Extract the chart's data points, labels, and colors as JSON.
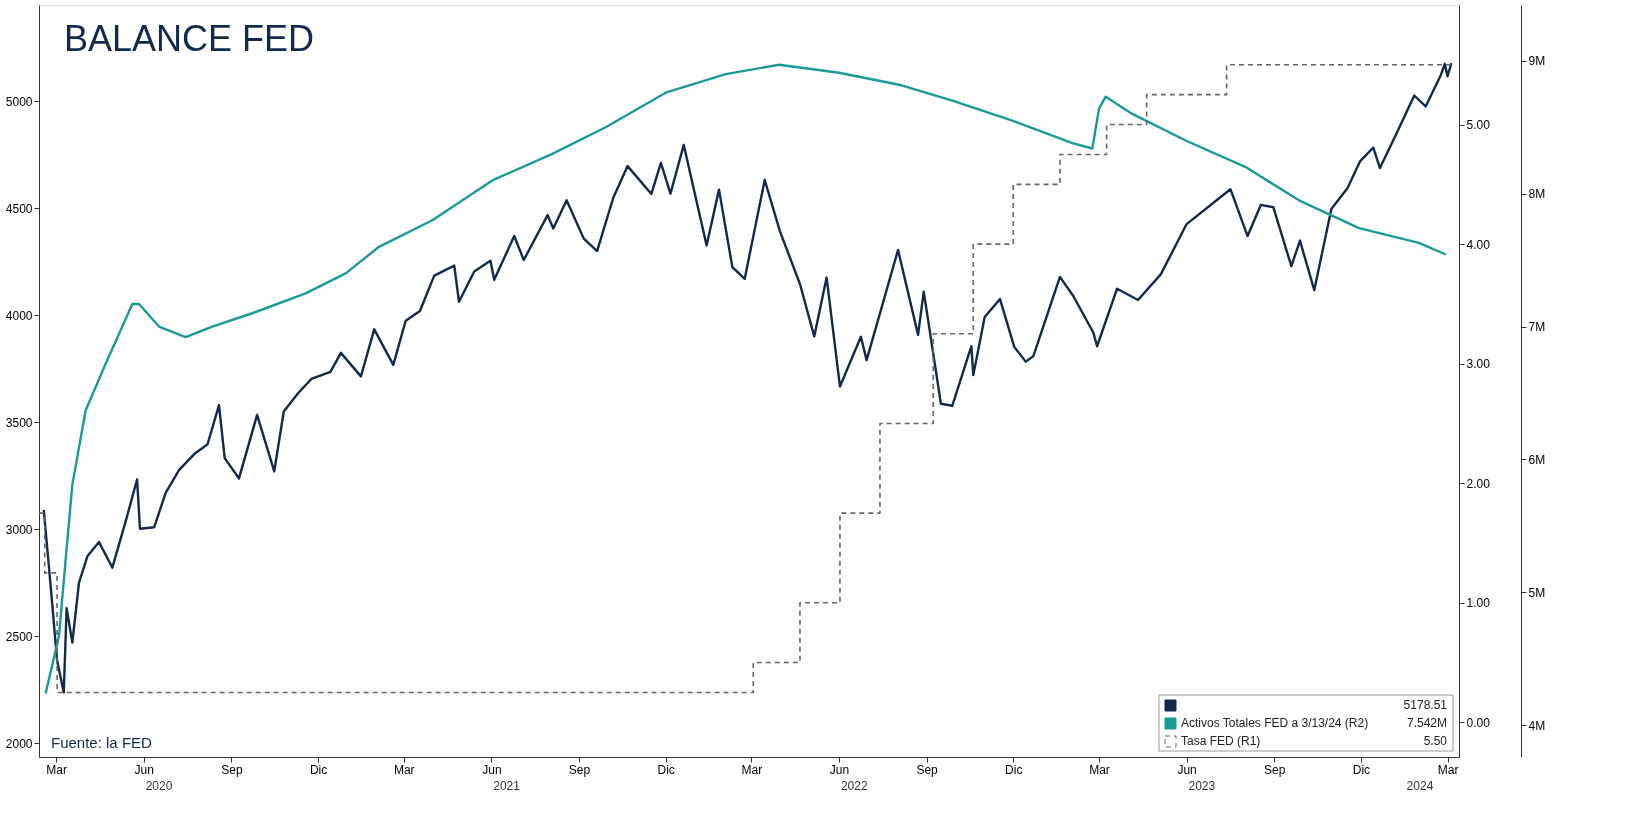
{
  "chart_data": {
    "type": "line",
    "title": "BALANCE FED",
    "xlim": [
      "2020-02-26",
      "2024-03-27"
    ],
    "x2lim": [
      "2020-02-26",
      "2024-03-27"
    ],
    "xticks": [
      {
        "value": "2020-03-15",
        "label": "Mar"
      },
      {
        "value": "2020-06-15",
        "label": "Jun"
      },
      {
        "value": "2020-09-15",
        "label": "Sep"
      },
      {
        "value": "2020-12-15",
        "label": "Dic"
      },
      {
        "value": "2021-03-15",
        "label": "Mar"
      },
      {
        "value": "2021-06-15",
        "label": "Jun"
      },
      {
        "value": "2021-09-15",
        "label": "Sep"
      },
      {
        "value": "2021-12-15",
        "label": "Dic"
      },
      {
        "value": "2022-03-15",
        "label": "Mar"
      },
      {
        "value": "2022-06-15",
        "label": "Jun"
      },
      {
        "value": "2022-09-15",
        "label": "Sep"
      },
      {
        "value": "2022-12-15",
        "label": "Dic"
      },
      {
        "value": "2023-03-15",
        "label": "Mar"
      },
      {
        "value": "2023-06-15",
        "label": "Jun"
      },
      {
        "value": "2023-09-15",
        "label": "Sep"
      },
      {
        "value": "2023-12-15",
        "label": "Dic"
      },
      {
        "value": "2024-03-15",
        "label": "Mar"
      }
    ],
    "x2ticks": [
      {
        "value": "2020-07-01",
        "label": "2020"
      },
      {
        "value": "2021-07-01",
        "label": "2021"
      },
      {
        "value": "2022-07-01",
        "label": "2022"
      },
      {
        "value": "2023-07-01",
        "label": "2023"
      },
      {
        "value": "2024-02-15",
        "label": "2024"
      }
    ],
    "ylim": [
      1935,
      5450
    ],
    "yticks": [
      2000,
      2500,
      3000,
      3500,
      4000,
      4500,
      5000
    ],
    "y2lim": [
      -0.29,
      6.0
    ],
    "y2ticks": [
      {
        "value": 0,
        "label": "0.00"
      },
      {
        "value": 1,
        "label": "1.00"
      },
      {
        "value": 2,
        "label": "2.00"
      },
      {
        "value": 3,
        "label": "3.00"
      },
      {
        "value": 4,
        "label": "4.00"
      },
      {
        "value": 5,
        "label": "5.00"
      }
    ],
    "y3lim": [
      3.76,
      9.42
    ],
    "y3ticks": [
      {
        "value": 4,
        "label": "4M"
      },
      {
        "value": 5,
        "label": "5M"
      },
      {
        "value": 6,
        "label": "6M"
      },
      {
        "value": 7,
        "label": "7M"
      },
      {
        "value": 8,
        "label": "8M"
      },
      {
        "value": 9,
        "label": "9M"
      }
    ],
    "grid": false,
    "legend": "bottom right",
    "annotations": [
      "Fuente: la FED",
      "5178.51",
      "7.542M",
      "5.50"
    ],
    "series": [
      {
        "type": "line",
        "axis": "y",
        "color": "#13294b",
        "line_style": "solid",
        "x": [
          "2020-03-02",
          "2020-03-09",
          "2020-03-16",
          "2020-03-23",
          "2020-03-26",
          "2020-04-01",
          "2020-04-08",
          "2020-04-17",
          "2020-04-29",
          "2020-05-13",
          "2020-05-27",
          "2020-06-08",
          "2020-06-11",
          "2020-06-26",
          "2020-07-08",
          "2020-07-22",
          "2020-08-07",
          "2020-08-21",
          "2020-09-02",
          "2020-09-08",
          "2020-09-23",
          "2020-10-12",
          "2020-10-30",
          "2020-11-09",
          "2020-11-24",
          "2020-12-08",
          "2020-12-28",
          "2021-01-08",
          "2021-01-29",
          "2021-02-12",
          "2021-03-04",
          "2021-03-17",
          "2021-04-01",
          "2021-04-16",
          "2021-05-07",
          "2021-05-12",
          "2021-05-28",
          "2021-06-14",
          "2021-06-18",
          "2021-07-09",
          "2021-07-19",
          "2021-08-13",
          "2021-08-19",
          "2021-09-02",
          "2021-09-20",
          "2021-10-04",
          "2021-10-21",
          "2021-11-05",
          "2021-11-30",
          "2021-12-10",
          "2021-12-20",
          "2022-01-03",
          "2022-01-27",
          "2022-02-09",
          "2022-02-23",
          "2022-03-08",
          "2022-03-29",
          "2022-04-14",
          "2022-05-05",
          "2022-05-20",
          "2022-06-02",
          "2022-06-16",
          "2022-07-08",
          "2022-07-14",
          "2022-08-16",
          "2022-09-06",
          "2022-09-12",
          "2022-09-30",
          "2022-10-12",
          "2022-11-01",
          "2022-11-03",
          "2022-11-15",
          "2022-12-01",
          "2022-12-16",
          "2022-12-28",
          "2023-01-05",
          "2023-02-02",
          "2023-02-16",
          "2023-03-09",
          "2023-03-13",
          "2023-04-03",
          "2023-04-25",
          "2023-05-19",
          "2023-06-15",
          "2023-07-31",
          "2023-08-18",
          "2023-09-01",
          "2023-09-14",
          "2023-10-03",
          "2023-10-12",
          "2023-10-27",
          "2023-11-14",
          "2023-12-01",
          "2023-12-14",
          "2023-12-28",
          "2024-01-04",
          "2024-01-23",
          "2024-02-09",
          "2024-02-21",
          "2024-03-08",
          "2024-03-12",
          "2024-03-15",
          "2024-03-19"
        ],
        "values": [
          3090,
          2746,
          2386,
          2237,
          2630,
          2470,
          2750,
          2875,
          2940,
          2820,
          3036,
          3232,
          3002,
          3009,
          3170,
          3276,
          3351,
          3397,
          3580,
          3332,
          3237,
          3534,
          3270,
          3550,
          3635,
          3702,
          3735,
          3824,
          3714,
          3934,
          3768,
          3974,
          4020,
          4185,
          4232,
          4063,
          4204,
          4255,
          4166,
          4370,
          4258,
          4468,
          4405,
          4537,
          4358,
          4300,
          4549,
          4697,
          4567,
          4712,
          4568,
          4796,
          4326,
          4587,
          4225,
          4170,
          4632,
          4392,
          4146,
          3901,
          4176,
          3667,
          3899,
          3790,
          4305,
          3908,
          4110,
          3586,
          3577,
          3856,
          3720,
          3992,
          4076,
          3852,
          3783,
          3808,
          4179,
          4090,
          3919,
          3855,
          4124,
          4071,
          4192,
          4426,
          4589,
          4370,
          4516,
          4505,
          4229,
          4349,
          4117,
          4496,
          4595,
          4719,
          4783,
          4688,
          4865,
          5027,
          4976,
          5123,
          5175,
          5117,
          5178.51
        ]
      },
      {
        "type": "line",
        "axis": "y3",
        "name": "Activos Totales FED a 3/13/24 (R2)",
        "color": "#1a9a95",
        "line_style": "solid",
        "x": [
          "2020-03-04",
          "2020-03-18",
          "2020-03-25",
          "2020-04-01",
          "2020-04-15",
          "2020-05-06",
          "2020-06-03",
          "2020-06-10",
          "2020-07-01",
          "2020-07-29",
          "2020-08-26",
          "2020-10-07",
          "2020-12-02",
          "2021-01-13",
          "2021-02-17",
          "2021-04-14",
          "2021-06-16",
          "2021-08-18",
          "2021-10-13",
          "2021-12-15",
          "2022-02-16",
          "2022-04-13",
          "2022-06-15",
          "2022-08-17",
          "2022-10-12",
          "2022-12-14",
          "2023-02-15",
          "2023-03-08",
          "2023-03-15",
          "2023-03-22",
          "2023-04-19",
          "2023-06-14",
          "2023-08-16",
          "2023-10-11",
          "2023-12-13",
          "2024-02-14",
          "2024-03-13"
        ],
        "values": [
          4.24,
          4.67,
          5.25,
          5.81,
          6.37,
          6.72,
          7.17,
          7.17,
          7.0,
          6.92,
          7.0,
          7.1,
          7.25,
          7.4,
          7.6,
          7.8,
          8.1,
          8.3,
          8.5,
          8.76,
          8.9,
          8.97,
          8.91,
          8.82,
          8.7,
          8.55,
          8.38,
          8.34,
          8.64,
          8.73,
          8.6,
          8.4,
          8.2,
          7.95,
          7.74,
          7.63,
          7.542
        ]
      },
      {
        "type": "step",
        "axis": "y2",
        "name": "Tasa FED (R1)",
        "color": "#666666",
        "line_style": "dashed",
        "x": [
          "2020-02-26",
          "2020-03-03",
          "2020-03-16",
          "2022-03-17",
          "2022-05-05",
          "2022-06-16",
          "2022-07-28",
          "2022-09-22",
          "2022-11-03",
          "2022-12-15",
          "2023-02-02",
          "2023-03-23",
          "2023-05-04",
          "2023-07-27",
          "2024-03-19"
        ],
        "values": [
          1.75,
          1.25,
          0.25,
          0.5,
          1.0,
          1.75,
          2.5,
          3.25,
          4.0,
          4.5,
          4.75,
          5.0,
          5.25,
          5.5,
          5.5
        ]
      }
    ]
  }
}
